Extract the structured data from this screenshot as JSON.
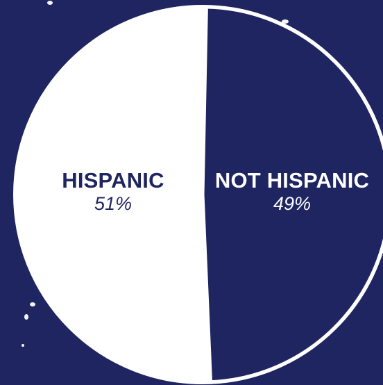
{
  "chart_data": {
    "type": "pie",
    "categories": [
      "HISPANIC",
      "NOT HISPANIC"
    ],
    "values": [
      51,
      49
    ],
    "labels": [
      "51%",
      "49%"
    ],
    "colors": [
      "#ffffff",
      "#1f2560"
    ],
    "background": "#1f2560",
    "outline": "#ffffff"
  }
}
